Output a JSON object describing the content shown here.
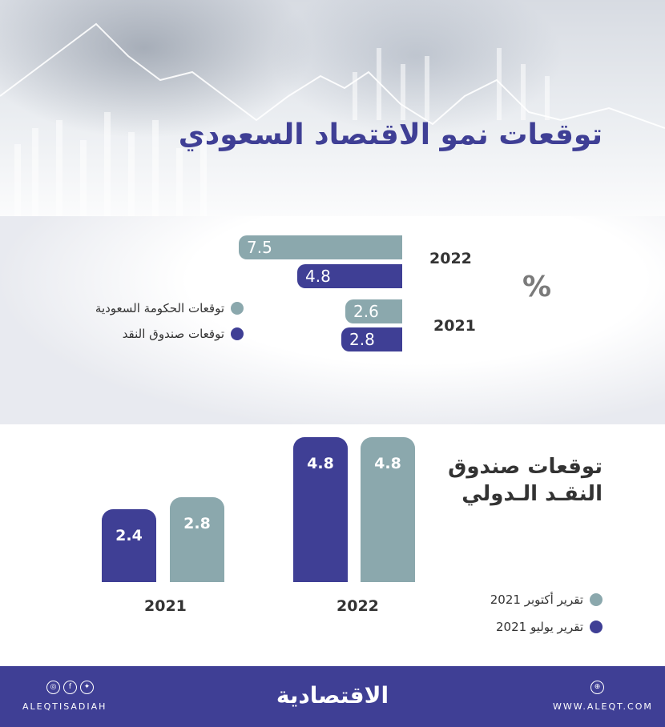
{
  "title": "توقعات نمو الاقتصاد السعودي",
  "unit_symbol": "%",
  "chart_data": [
    {
      "type": "bar",
      "orientation": "horizontal",
      "categories": [
        "2022",
        "2021"
      ],
      "series": [
        {
          "name": "توقعات الحكومة السعودية",
          "values": [
            7.5,
            2.6
          ],
          "color": "#8ba8ad"
        },
        {
          "name": "توقعات صندوق النقد",
          "values": [
            4.8,
            2.8
          ],
          "color": "#3f3f95"
        }
      ],
      "value_labels": {
        "s0": [
          "7.5",
          "2.6"
        ],
        "s1": [
          "4.8",
          "2.8"
        ]
      },
      "xlim": [
        0,
        7.5
      ],
      "grid": false,
      "legend_position": "left"
    },
    {
      "type": "bar",
      "orientation": "vertical",
      "title_line1": "توقعات صندوق",
      "title_line2": "النقـد الـدولي",
      "categories": [
        "2021",
        "2022"
      ],
      "series": [
        {
          "name": "تقرير يوليو 2021",
          "values": [
            2.4,
            4.8
          ],
          "color": "#3f3f95"
        },
        {
          "name": "تقرير أكتوبر 2021",
          "values": [
            2.8,
            4.8
          ],
          "color": "#8ba8ad"
        }
      ],
      "value_labels": {
        "s0": [
          "2.4",
          "4.8"
        ],
        "s1": [
          "2.8",
          "4.8"
        ]
      },
      "ylim": [
        0,
        4.8
      ],
      "grid": false,
      "legend_position": "bottom-right"
    }
  ],
  "footer": {
    "brand": "الاقتصادية",
    "social_handle": "ALEQTISADIAH",
    "website": "WWW.ALEQT.COM",
    "social_icons": [
      "instagram-icon",
      "facebook-icon",
      "twitter-icon"
    ],
    "web_icon": "globe-icon"
  }
}
